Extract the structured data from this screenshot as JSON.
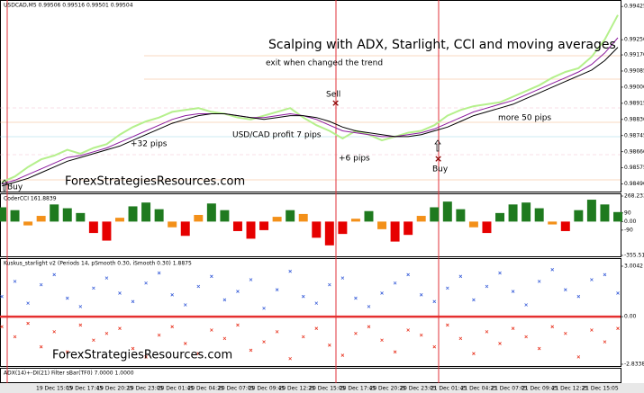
{
  "header": "USDCAD,M5 0.99506 0.99516 0.99501 0.99504",
  "annotations": {
    "title": "Scalping with ADX, Starlight,  CCI and moving averages",
    "exit": "exit when changed the trend",
    "sell": "Sell",
    "buy1": "Buy",
    "buy2": "Buy",
    "pips32": "+32 pips",
    "profit": "USD/CAD profit 7 pips",
    "pips6": "+6 pips",
    "more50": "more 50 pips",
    "site1": "ForexStrategiesResources.com",
    "site2": "ForexStrategiesResources.com"
  },
  "adx_label": "ADX(14)+-DI(21) Filter sBar(TF0) 7.0000 1.0000",
  "time_axis": [
    "19 Dec 15:05",
    "19 Dec 17:45",
    "19 Dec 20:25",
    "19 Dec 23:05",
    "20 Dec 01:45",
    "20 Dec 04:25",
    "20 Dec 07:05",
    "20 Dec 09:45",
    "20 Dec 12:25",
    "20 Dec 15:05",
    "20 Dec 17:45",
    "20 Dec 20:25",
    "20 Dec 23:05",
    "21 Dec 01:45",
    "21 Dec 04:25",
    "21 Dec 07:05",
    "21 Dec 09:45",
    "21 Dec 12:25",
    "21 Dec 15:05"
  ],
  "chart_data": [
    {
      "type": "line",
      "ylim": [
        0.9846,
        0.9944
      ],
      "yticks": [
        0.99425,
        {
          "value": 0.9925,
          "label": "0.99250"
        },
        {
          "value": 0.9917,
          "label": "0.99170"
        },
        0.99085,
        {
          "value": 0.99,
          "label": "0.99000"
        },
        0.98915,
        {
          "value": 0.9883,
          "label": "0.98830"
        },
        0.98745,
        {
          "value": 0.9866,
          "label": "0.98660"
        },
        0.98575,
        {
          "value": 0.9849,
          "label": "0.98490"
        }
      ],
      "series": [
        {
          "color": "#b5f08c",
          "values": [
            0.985,
            0.9853,
            0.9858,
            0.9862,
            0.9864,
            0.9867,
            0.9865,
            0.9868,
            0.987,
            0.9875,
            0.9879,
            0.9882,
            0.9884,
            0.9887,
            0.9888,
            0.9889,
            0.9887,
            0.9886,
            0.9884,
            0.9883,
            0.9885,
            0.9887,
            0.9889,
            0.9884,
            0.988,
            0.9877,
            0.9873,
            0.9877,
            0.9875,
            0.9872,
            0.9874,
            0.9876,
            0.9877,
            0.988,
            0.9885,
            0.9888,
            0.989,
            0.9891,
            0.9892,
            0.9895,
            0.9898,
            0.9901,
            0.9905,
            0.9908,
            0.991,
            0.9916,
            0.9925,
            0.9938
          ]
        },
        {
          "color": "#8b1a9e",
          "values": [
            0.9849,
            0.9851,
            0.9854,
            0.9857,
            0.986,
            0.9863,
            0.9864,
            0.9866,
            0.9868,
            0.9871,
            0.9874,
            0.9877,
            0.988,
            0.9883,
            0.9885,
            0.9886,
            0.9886,
            0.9886,
            0.9885,
            0.9884,
            0.9884,
            0.9885,
            0.9886,
            0.9885,
            0.9883,
            0.988,
            0.9877,
            0.9876,
            0.9875,
            0.9874,
            0.9874,
            0.9875,
            0.9876,
            0.9878,
            0.9881,
            0.9884,
            0.9887,
            0.9889,
            0.9891,
            0.9893,
            0.9896,
            0.9899,
            0.9902,
            0.9905,
            0.9908,
            0.9912,
            0.9918,
            0.9926
          ]
        },
        {
          "color": "#000000",
          "values": [
            0.9848,
            0.985,
            0.9852,
            0.9855,
            0.9858,
            0.9861,
            0.9863,
            0.9865,
            0.9867,
            0.9869,
            0.9872,
            0.9875,
            0.9878,
            0.9881,
            0.9883,
            0.9885,
            0.9886,
            0.9886,
            0.9885,
            0.9884,
            0.9883,
            0.9884,
            0.9885,
            0.9885,
            0.9884,
            0.9882,
            0.9879,
            0.9877,
            0.9876,
            0.9875,
            0.9874,
            0.9874,
            0.9875,
            0.9877,
            0.9879,
            0.9882,
            0.9885,
            0.9887,
            0.9889,
            0.9891,
            0.9894,
            0.9897,
            0.99,
            0.9903,
            0.9906,
            0.9909,
            0.9914,
            0.9921
          ]
        }
      ]
    },
    {
      "type": "bar",
      "title": "CoderCCI 161.8839",
      "ylim": [
        -355.518,
        268.2333
      ],
      "yticks": [
        268.2333,
        90,
        {
          "value": 0,
          "label": "0.00"
        },
        -90,
        -355.518
      ],
      "colors": {
        "up": "#1f7a1f",
        "mid": "#f39019",
        "down": "#e60000"
      },
      "values": [
        150,
        120,
        -40,
        60,
        180,
        140,
        90,
        -120,
        -200,
        40,
        160,
        200,
        130,
        -60,
        -150,
        70,
        190,
        120,
        -100,
        -180,
        -90,
        50,
        120,
        80,
        -170,
        -250,
        -130,
        30,
        110,
        -80,
        -210,
        -140,
        60,
        150,
        210,
        130,
        -60,
        -120,
        90,
        180,
        200,
        140,
        -30,
        -100,
        120,
        230,
        180,
        100
      ]
    },
    {
      "type": "scatter",
      "title": "Kuskus_starlight v2 (Periods 14, pSmooth 0.30, iSmooth 0.30) 1.8875",
      "ylim": [
        -2.8338,
        3.0042
      ],
      "yticks": [
        3.0042,
        {
          "value": 0,
          "label": "0.00"
        },
        -2.8338
      ],
      "series": [
        {
          "color": "#3a5fd9",
          "values": [
            1.2,
            2.1,
            0.8,
            1.9,
            2.5,
            1.1,
            0.6,
            1.7,
            2.3,
            1.4,
            0.9,
            2.0,
            2.6,
            1.3,
            0.7,
            1.8,
            2.4,
            1.0,
            1.5,
            2.2,
            0.5,
            1.6,
            2.7,
            1.2,
            0.8,
            1.9,
            2.3,
            1.1,
            0.6,
            1.4,
            2.0,
            2.5,
            1.3,
            0.9,
            1.7,
            2.4,
            1.0,
            1.8,
            2.6,
            1.5,
            0.7,
            2.1,
            2.8,
            1.6,
            1.2,
            2.2,
            2.5,
            1.4
          ]
        },
        {
          "color": "#e8321e",
          "values": [
            -0.6,
            -1.2,
            -0.4,
            -1.8,
            -0.9,
            -2.1,
            -0.5,
            -1.4,
            -1.0,
            -0.7,
            -1.9,
            -2.4,
            -1.1,
            -0.6,
            -1.6,
            -2.2,
            -0.8,
            -1.3,
            -0.5,
            -2.0,
            -1.5,
            -0.9,
            -2.5,
            -1.2,
            -0.7,
            -1.7,
            -2.3,
            -1.0,
            -0.6,
            -1.4,
            -2.1,
            -0.8,
            -1.1,
            -1.8,
            -0.5,
            -1.3,
            -2.2,
            -0.9,
            -1.6,
            -0.7,
            -1.2,
            -1.9,
            -0.6,
            -1.0,
            -2.4,
            -0.8,
            -1.5,
            -0.7
          ]
        }
      ]
    }
  ]
}
